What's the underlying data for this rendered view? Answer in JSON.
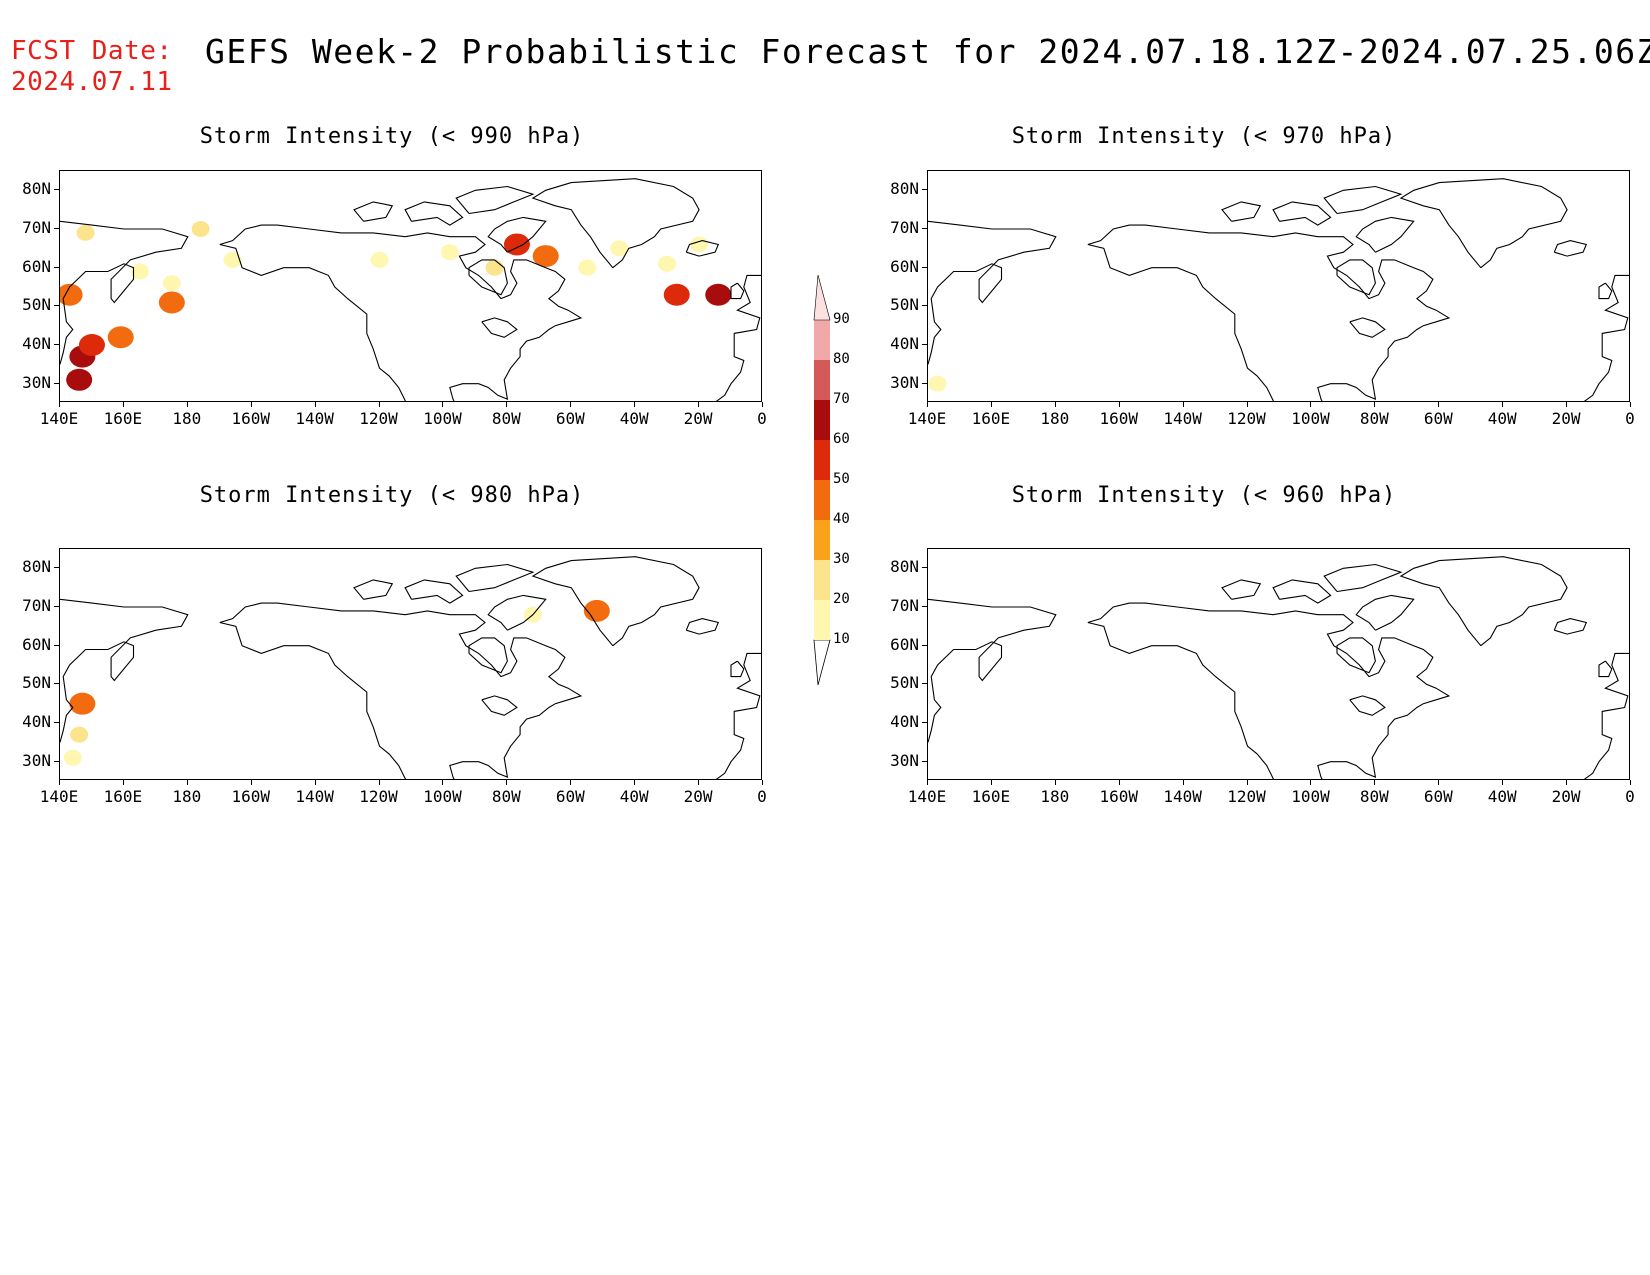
{
  "header": {
    "fcst_line1": "FCST Date:",
    "fcst_line2": "2024.07.11",
    "title": "GEFS Week-2 Probabilistic Forecast for 2024.07.18.12Z-2024.07.25.06Z"
  },
  "axes": {
    "lat_labels": [
      "80N",
      "70N",
      "60N",
      "50N",
      "40N",
      "30N"
    ],
    "lon_labels": [
      "140E",
      "160E",
      "180",
      "160W",
      "140W",
      "120W",
      "100W",
      "80W",
      "60W",
      "40W",
      "20W",
      "0"
    ]
  },
  "panels": [
    {
      "id": "p990",
      "title": "Storm Intensity (< 990 hPa)"
    },
    {
      "id": "p970",
      "title": "Storm Intensity (< 970 hPa)"
    },
    {
      "id": "p980",
      "title": "Storm Intensity (< 980 hPa)"
    },
    {
      "id": "p960",
      "title": "Storm Intensity (< 960 hPa)"
    }
  ],
  "colorbar": {
    "levels": [
      "10",
      "20",
      "30",
      "40",
      "50",
      "60",
      "70",
      "80",
      "90"
    ],
    "colors": [
      "#fff6b0",
      "#fce48c",
      "#f9a21a",
      "#f26b0f",
      "#dd2a0a",
      "#a80c0c",
      "#d45a5a",
      "#f0a8a8",
      "#fde0e0"
    ]
  },
  "chart_data": {
    "type": "heatmap",
    "units": "probability (%)",
    "domain": {
      "lon": [
        140,
        360
      ],
      "lat": [
        25,
        85
      ]
    },
    "panels": [
      {
        "panel": "p990",
        "blobs": [
          {
            "lon": 147,
            "lat": 37,
            "p": 65
          },
          {
            "lon": 146,
            "lat": 31,
            "p": 60
          },
          {
            "lon": 150,
            "lat": 40,
            "p": 50
          },
          {
            "lon": 143,
            "lat": 53,
            "p": 45
          },
          {
            "lon": 159,
            "lat": 42,
            "p": 45
          },
          {
            "lon": 148,
            "lat": 69,
            "p": 20
          },
          {
            "lon": 165,
            "lat": 59,
            "p": 15
          },
          {
            "lon": 175,
            "lat": 56,
            "p": 15
          },
          {
            "lon": 194,
            "lat": 62,
            "p": 15
          },
          {
            "lon": 175,
            "lat": 51,
            "p": 45
          },
          {
            "lon": 184,
            "lat": 70,
            "p": 20
          },
          {
            "lon": 262,
            "lat": 64,
            "p": 15
          },
          {
            "lon": 283,
            "lat": 66,
            "p": 50
          },
          {
            "lon": 292,
            "lat": 63,
            "p": 45
          },
          {
            "lon": 276,
            "lat": 60,
            "p": 20
          },
          {
            "lon": 305,
            "lat": 60,
            "p": 15
          },
          {
            "lon": 330,
            "lat": 61,
            "p": 15
          },
          {
            "lon": 340,
            "lat": 66,
            "p": 15
          },
          {
            "lon": 346,
            "lat": 53,
            "p": 60
          },
          {
            "lon": 333,
            "lat": 53,
            "p": 50
          },
          {
            "lon": 240,
            "lat": 62,
            "p": 15
          },
          {
            "lon": 315,
            "lat": 65,
            "p": 15
          }
        ]
      },
      {
        "panel": "p970",
        "blobs": [
          {
            "lon": 143,
            "lat": 30,
            "p": 15
          }
        ]
      },
      {
        "panel": "p980",
        "blobs": [
          {
            "lon": 146,
            "lat": 37,
            "p": 25
          },
          {
            "lon": 147,
            "lat": 45,
            "p": 45
          },
          {
            "lon": 144,
            "lat": 31,
            "p": 15
          },
          {
            "lon": 288,
            "lat": 68,
            "p": 15
          },
          {
            "lon": 308,
            "lat": 69,
            "p": 40
          }
        ]
      },
      {
        "panel": "p960",
        "blobs": []
      }
    ]
  }
}
